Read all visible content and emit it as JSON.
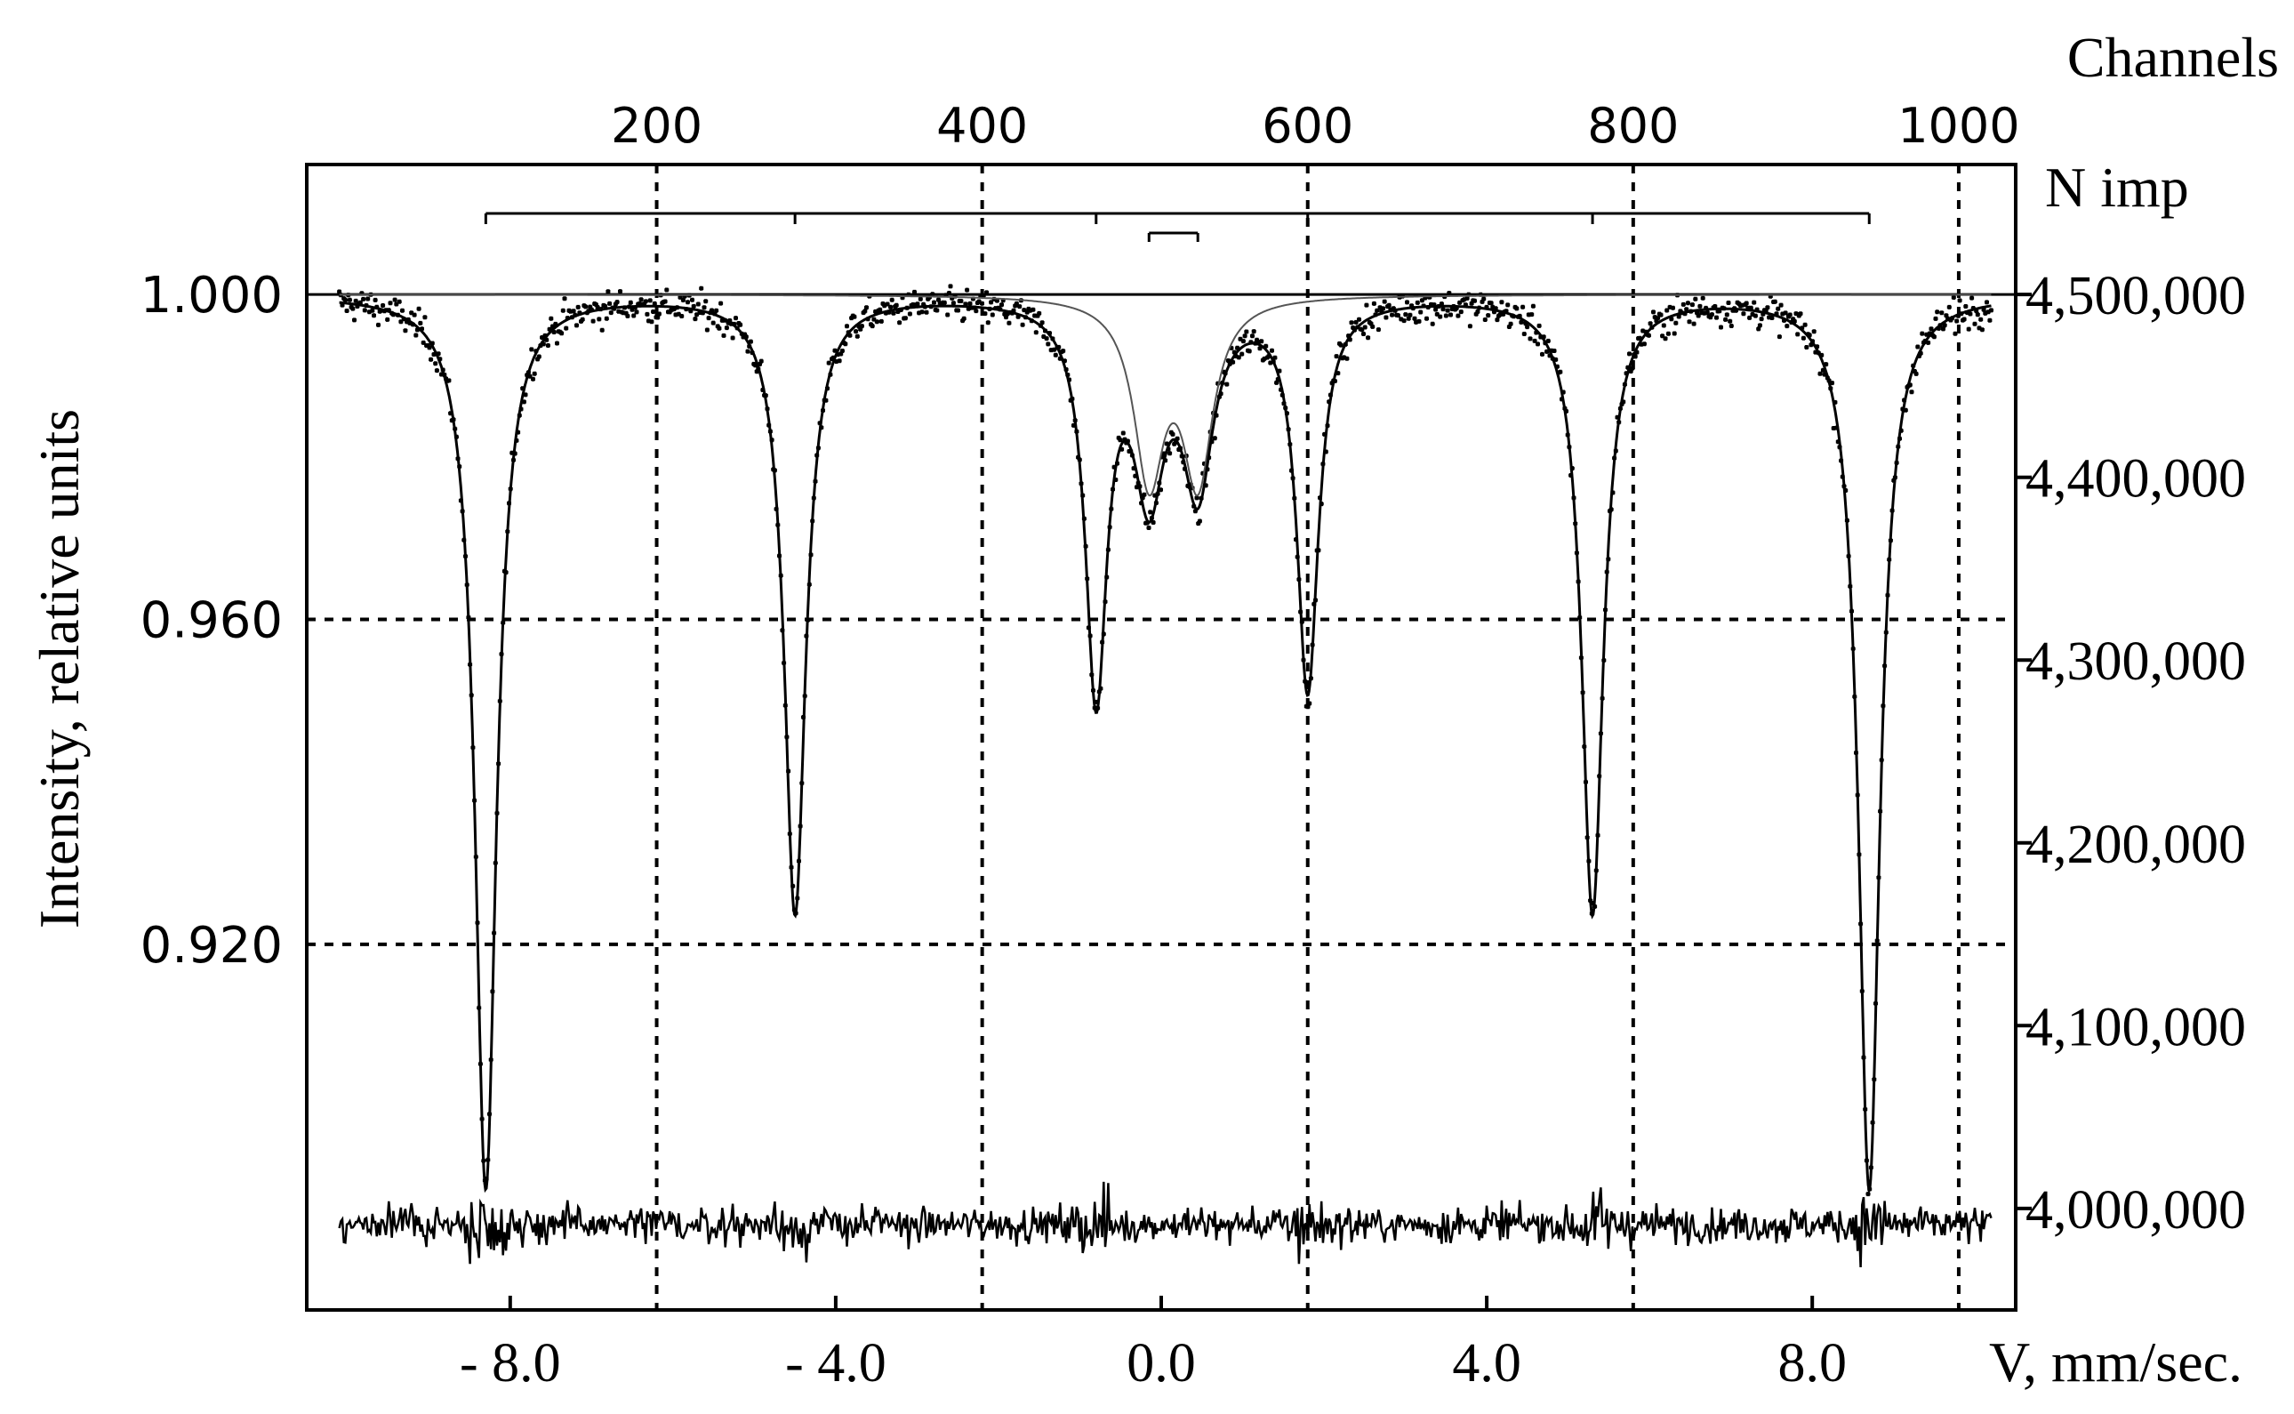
{
  "chart_data": {
    "type": "scatter",
    "title": "",
    "xlabel": "V, mm/sec.",
    "ylabel": "Intensity, relative units",
    "top_axis_label": "Channels",
    "right_axis_label": "N imp",
    "xlim": [
      -10.5,
      10.5
    ],
    "ylim": [
      0.875,
      1.016
    ],
    "x_ticks": [
      {
        "value": -8.0,
        "label": "- 8.0"
      },
      {
        "value": -4.0,
        "label": "- 4.0"
      },
      {
        "value": 0.0,
        "label": "0.0"
      },
      {
        "value": 4.0,
        "label": "4.0"
      },
      {
        "value": 8.0,
        "label": "8.0"
      }
    ],
    "y_ticks": [
      {
        "value": 1.0,
        "label": "1.000"
      },
      {
        "value": 0.96,
        "label": "0.960"
      },
      {
        "value": 0.92,
        "label": "0.920"
      }
    ],
    "top_ticks": [
      {
        "channel": 200,
        "label": "200"
      },
      {
        "channel": 400,
        "label": "400"
      },
      {
        "channel": 600,
        "label": "600"
      },
      {
        "channel": 800,
        "label": "800"
      },
      {
        "channel": 1000,
        "label": "1000"
      }
    ],
    "channel_to_velocity": {
      "channel_at_zero_velocity": 510,
      "channels_per_mm_s": 50
    },
    "right_ticks": [
      {
        "value": 4500000,
        "label": "4,500,000"
      },
      {
        "value": 4400000,
        "label": "4,400,000"
      },
      {
        "value": 4300000,
        "label": "4,300,000"
      },
      {
        "value": 4200000,
        "label": "4,200,000"
      },
      {
        "value": 4100000,
        "label": "4,100,000"
      },
      {
        "value": 4000000,
        "label": "4,000,000"
      }
    ],
    "right_axis_map": {
      "relative_at_4500000": 1.0,
      "relative_per_100000": 0.0225
    },
    "grid": true,
    "baseline": 1.0,
    "sextet": {
      "name": "",
      "lines": [
        {
          "position": -8.3,
          "intensity": 0.89
        },
        {
          "position": -4.5,
          "intensity": 0.924
        },
        {
          "position": -0.8,
          "intensity": 0.952
        },
        {
          "position": 1.8,
          "intensity": 0.952
        },
        {
          "position": 5.3,
          "intensity": 0.924
        },
        {
          "position": 8.7,
          "intensity": 0.89
        }
      ],
      "linewidth": 0.32
    },
    "doublet": {
      "name": "",
      "lines": [
        {
          "position": -0.15,
          "intensity": 0.978
        },
        {
          "position": 0.45,
          "intensity": 0.978
        }
      ],
      "linewidth": 0.45
    },
    "residuals_level": 0.8855,
    "noise_amplitude": 0.0017
  }
}
